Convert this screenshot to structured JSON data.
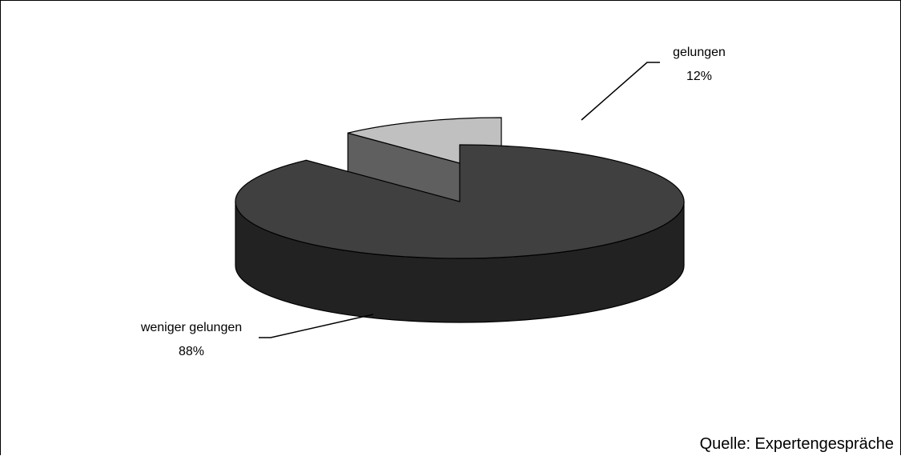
{
  "chart_data": {
    "type": "pie",
    "style": "3d-exploded",
    "slices": [
      {
        "label": "weniger gelungen",
        "value": 88,
        "value_label": "88%",
        "color": "#404040",
        "side_color": "#222222"
      },
      {
        "label": "gelungen",
        "value": 12,
        "value_label": "12%",
        "color": "#c0c0c0",
        "side_color": "#5f5f5f"
      }
    ],
    "title": "",
    "legend": "none"
  },
  "source": "Quelle: Expertengespräche"
}
